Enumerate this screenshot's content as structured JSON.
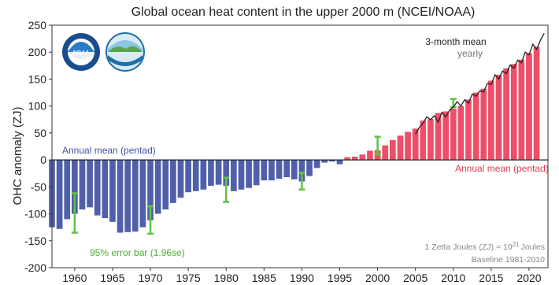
{
  "chart_data": {
    "type": "bar",
    "title": "Global ocean heat content in the upper 2000 m (NCEI/NOAA)",
    "xlabel": "",
    "ylabel": "OHC anomaly (ZJ)",
    "xlim": [
      1957,
      2022.5
    ],
    "ylim": [
      -200,
      250
    ],
    "x_ticks": [
      1960,
      1965,
      1970,
      1975,
      1980,
      1985,
      1990,
      1995,
      2000,
      2005,
      2010,
      2015,
      2020
    ],
    "y_ticks": [
      -200,
      -150,
      -100,
      -50,
      0,
      50,
      100,
      150,
      200,
      250
    ],
    "grid": false,
    "colors": {
      "negative": "#5060a8",
      "positive": "#ee4e68",
      "error_bar": "#5ec440",
      "line": "#222222",
      "zero_line": "#222222"
    },
    "series": [
      {
        "name": "Annual mean (pentad)",
        "years": [
          1957,
          1958,
          1959,
          1960,
          1961,
          1962,
          1963,
          1964,
          1965,
          1966,
          1967,
          1968,
          1969,
          1970,
          1971,
          1972,
          1973,
          1974,
          1975,
          1976,
          1977,
          1978,
          1979,
          1980,
          1981,
          1982,
          1983,
          1984,
          1985,
          1986,
          1987,
          1988,
          1989,
          1990,
          1991,
          1992,
          1993,
          1994,
          1995,
          1996,
          1997,
          1998,
          1999,
          2000,
          2001,
          2002,
          2003,
          2004,
          2005,
          2006,
          2007,
          2008,
          2009,
          2010,
          2011,
          2012,
          2013,
          2014,
          2015,
          2016,
          2017,
          2018,
          2019,
          2020,
          2021
        ],
        "values": [
          -125,
          -128,
          -110,
          -100,
          -92,
          -88,
          -103,
          -108,
          -115,
          -135,
          -134,
          -133,
          -125,
          -112,
          -100,
          -92,
          -80,
          -70,
          -60,
          -58,
          -55,
          -48,
          -46,
          -48,
          -58,
          -55,
          -52,
          -47,
          -38,
          -38,
          -35,
          -32,
          -36,
          -40,
          -30,
          -15,
          -5,
          -3,
          -8,
          5,
          6,
          10,
          17,
          18,
          27,
          37,
          45,
          52,
          58,
          73,
          76,
          87,
          90,
          95,
          100,
          112,
          125,
          132,
          147,
          158,
          170,
          178,
          186,
          198,
          210
        ]
      }
    ],
    "line_series": {
      "name": "3-month mean",
      "x": [
        2005.0,
        2005.5,
        2006.0,
        2006.5,
        2007.0,
        2007.5,
        2008.0,
        2008.5,
        2009.0,
        2009.5,
        2010.0,
        2010.5,
        2011.0,
        2011.5,
        2012.0,
        2012.5,
        2013.0,
        2013.5,
        2014.0,
        2014.5,
        2015.0,
        2015.5,
        2016.0,
        2016.5,
        2017.0,
        2017.5,
        2018.0,
        2018.5,
        2019.0,
        2019.5,
        2020.0,
        2020.5,
        2021.0,
        2021.5,
        2022.0
      ],
      "y": [
        48,
        60,
        68,
        80,
        75,
        82,
        70,
        88,
        80,
        92,
        98,
        108,
        100,
        112,
        105,
        122,
        118,
        128,
        126,
        142,
        140,
        158,
        150,
        165,
        160,
        176,
        170,
        185,
        180,
        200,
        195,
        215,
        205,
        222,
        235
      ]
    },
    "error_bars": [
      {
        "x": 1960,
        "low": -135,
        "high": -62
      },
      {
        "x": 1970,
        "low": -137,
        "high": -86
      },
      {
        "x": 1980,
        "low": -78,
        "high": -33
      },
      {
        "x": 1990,
        "low": -55,
        "high": -24
      },
      {
        "x": 2000,
        "low": 10,
        "high": 43
      },
      {
        "x": 2010,
        "low": 98,
        "high": 113
      }
    ],
    "annotations": {
      "neg_mean_label": "Annual mean (pentad)",
      "pos_mean_label": "Annual mean (pentad)",
      "line_label": "3-month mean",
      "yearly_label": "yearly",
      "error_label": "95% error bar (1.96se)",
      "units_prefix": "1 Zetta Joules (ZJ) = 10",
      "units_exp": "21",
      "units_suffix": "Joules",
      "baseline": "Baseline 1981-2010"
    }
  }
}
